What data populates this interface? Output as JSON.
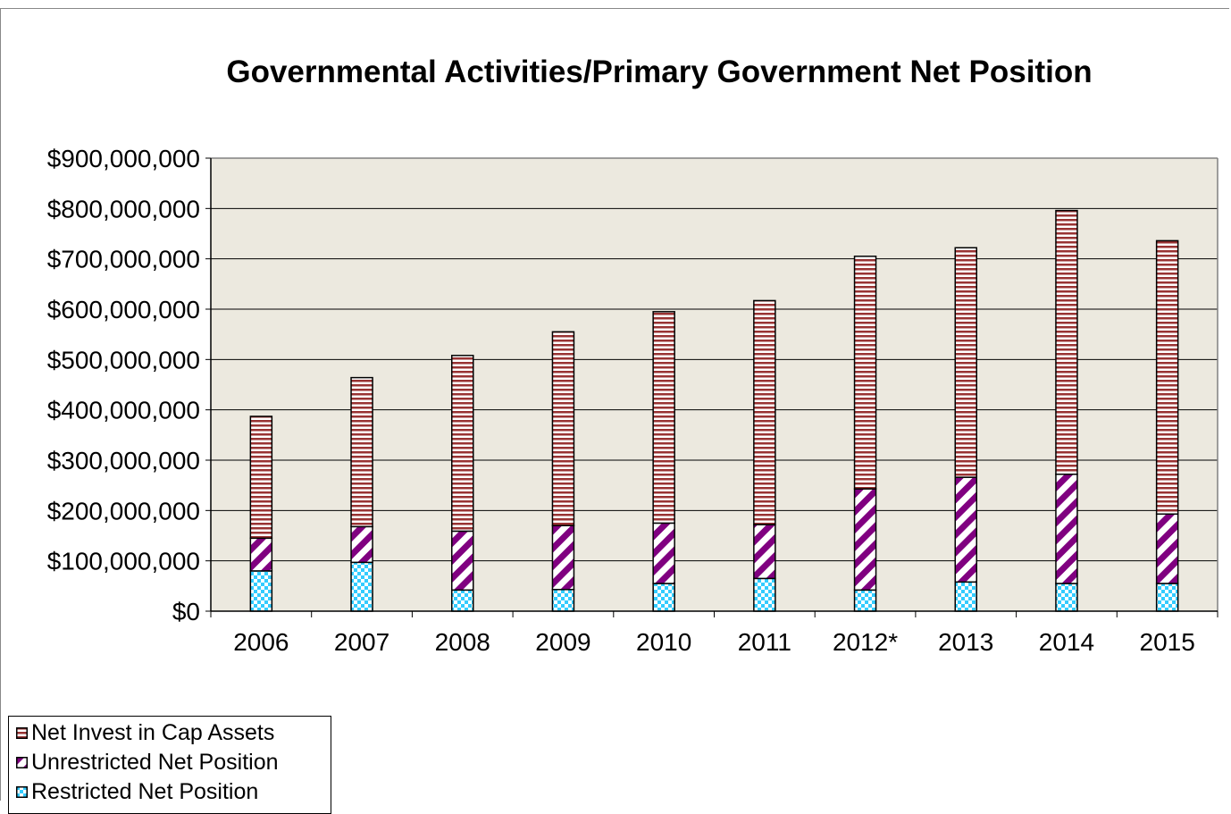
{
  "chart_data": {
    "type": "bar",
    "stacked": true,
    "title": "Governmental Activities/Primary Government Net Position",
    "categories": [
      "2006",
      "2007",
      "2008",
      "2009",
      "2010",
      "2011",
      "2012*",
      "2013",
      "2014",
      "2015"
    ],
    "ylim": [
      0,
      900000000
    ],
    "yticks": [
      "$0",
      "$100,000,000",
      "$200,000,000",
      "$300,000,000",
      "$400,000,000",
      "$500,000,000",
      "$600,000,000",
      "$700,000,000",
      "$800,000,000",
      "$900,000,000"
    ],
    "grid": true,
    "legend_position": "bottom-left",
    "series": [
      {
        "name": "Restricted Net Position",
        "color": "#33ccff",
        "pattern": "checker",
        "values": [
          80000000,
          97000000,
          42000000,
          43000000,
          55000000,
          65000000,
          42000000,
          58000000,
          55000000,
          55000000
        ]
      },
      {
        "name": "Unrestricted Net Position",
        "color": "#800080",
        "pattern": "diagonal",
        "values": [
          65000000,
          71000000,
          117000000,
          127000000,
          120000000,
          107000000,
          201000000,
          208000000,
          217000000,
          138000000
        ]
      },
      {
        "name": "Net Invest in Cap Assets",
        "color": "#993333",
        "pattern": "horizontal",
        "values": [
          242000000,
          296000000,
          349000000,
          385000000,
          420000000,
          445000000,
          462000000,
          456000000,
          524000000,
          543000000
        ]
      }
    ],
    "legend_order": [
      "Net Invest in Cap Assets",
      "Unrestricted Net Position",
      "Restricted Net Position"
    ],
    "plot_background": "#ece9df"
  }
}
